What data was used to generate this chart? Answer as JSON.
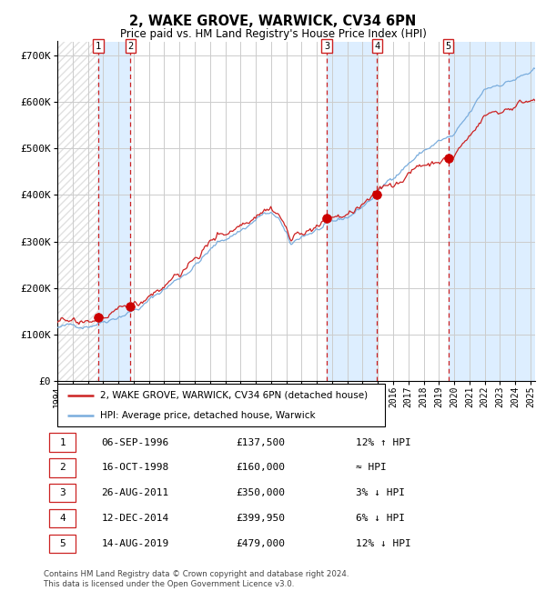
{
  "title": "2, WAKE GROVE, WARWICK, CV34 6PN",
  "subtitle": "Price paid vs. HM Land Registry's House Price Index (HPI)",
  "xlim": [
    1994.0,
    2025.3
  ],
  "ylim": [
    0,
    730000
  ],
  "yticks": [
    0,
    100000,
    200000,
    300000,
    400000,
    500000,
    600000,
    700000
  ],
  "ytick_labels": [
    "£0",
    "£100K",
    "£200K",
    "£300K",
    "£400K",
    "£500K",
    "£600K",
    "£700K"
  ],
  "hpi_color": "#7aaddd",
  "price_color": "#cc2222",
  "marker_color": "#cc0000",
  "sale_points": [
    {
      "num": 1,
      "year": 1996.69,
      "price": 137500
    },
    {
      "num": 2,
      "year": 1998.79,
      "price": 160000
    },
    {
      "num": 3,
      "year": 2011.65,
      "price": 350000
    },
    {
      "num": 4,
      "year": 2014.95,
      "price": 399950
    },
    {
      "num": 5,
      "year": 2019.62,
      "price": 479000
    }
  ],
  "legend_entries": [
    {
      "label": "2, WAKE GROVE, WARWICK, CV34 6PN (detached house)",
      "color": "#cc2222"
    },
    {
      "label": "HPI: Average price, detached house, Warwick",
      "color": "#7aaddd"
    }
  ],
  "table_rows": [
    {
      "num": 1,
      "date": "06-SEP-1996",
      "price": "£137,500",
      "hpi": "12% ↑ HPI"
    },
    {
      "num": 2,
      "date": "16-OCT-1998",
      "price": "£160,000",
      "hpi": "≈ HPI"
    },
    {
      "num": 3,
      "date": "26-AUG-2011",
      "price": "£350,000",
      "hpi": "3% ↓ HPI"
    },
    {
      "num": 4,
      "date": "12-DEC-2014",
      "price": "£399,950",
      "hpi": "6% ↓ HPI"
    },
    {
      "num": 5,
      "date": "14-AUG-2019",
      "price": "£479,000",
      "hpi": "12% ↓ HPI"
    }
  ],
  "footer": "Contains HM Land Registry data © Crown copyright and database right 2024.\nThis data is licensed under the Open Government Licence v3.0.",
  "sale_region_color": "#ddeeff",
  "grid_color": "#cccccc",
  "hatch_color": "#cccccc"
}
